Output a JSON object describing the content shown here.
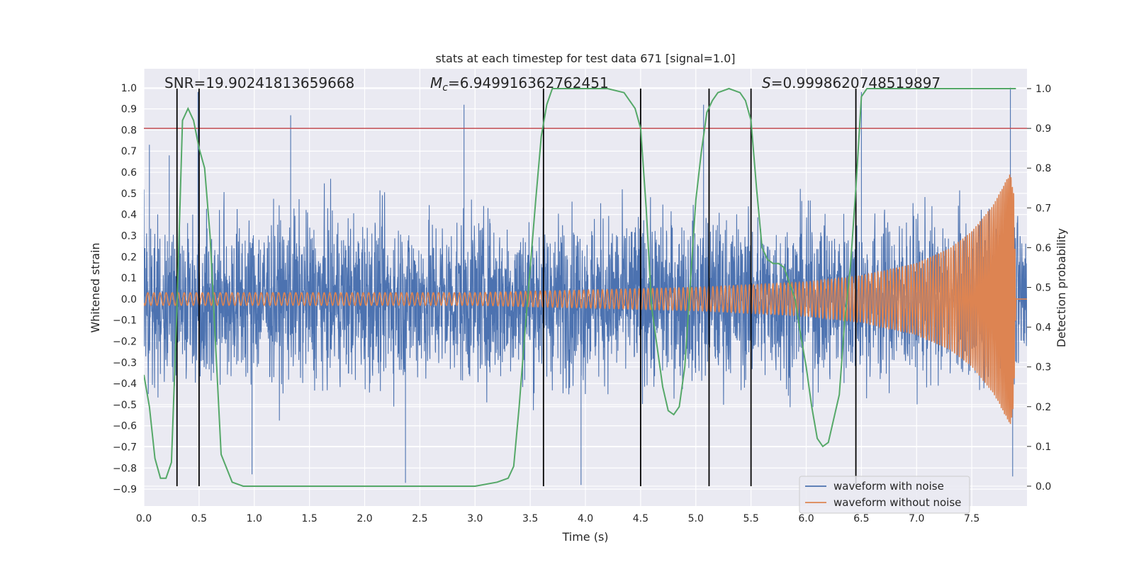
{
  "chart_data": {
    "type": "line",
    "title": "stats at each timestep for test data 671 [signal=1.0]",
    "xlabel": "Time (s)",
    "ylabel": "Whitened strain",
    "y2label": "Detection probability",
    "xlim": [
      0.0,
      8.0
    ],
    "ylim": [
      -0.98,
      1.09
    ],
    "y2lim": [
      -0.05,
      1.05
    ],
    "x_ticks": [
      "0.0",
      "0.5",
      "1.0",
      "1.5",
      "2.0",
      "2.5",
      "3.0",
      "3.5",
      "4.0",
      "4.5",
      "5.0",
      "5.5",
      "6.0",
      "6.5",
      "7.0",
      "7.5"
    ],
    "y_ticks": [
      "−0.9",
      "−0.8",
      "−0.7",
      "−0.6",
      "−0.5",
      "−0.4",
      "−0.3",
      "−0.2",
      "−0.1",
      "0.0",
      "0.1",
      "0.2",
      "0.3",
      "0.4",
      "0.5",
      "0.6",
      "0.7",
      "0.8",
      "0.9",
      "1.0"
    ],
    "y2_ticks": [
      "0.0",
      "0.1",
      "0.2",
      "0.3",
      "0.4",
      "0.5",
      "0.6",
      "0.7",
      "0.8",
      "0.9",
      "1.0"
    ],
    "grid": true,
    "legend_position": "lower-right",
    "annotations": {
      "snr": "SNR=19.90241813659668",
      "mc_symbol": "M",
      "mc_sub": "c",
      "mc_value": "=6.949916362762451",
      "s_symbol": "S",
      "s_value": "=0.9998620748519897"
    },
    "threshold_probability": 0.9,
    "vertical_markers": [
      0.3,
      0.5,
      3.62,
      4.5,
      5.12,
      5.5,
      6.45
    ],
    "series": [
      {
        "name": "waveform with noise",
        "color": "#4c72b0",
        "kind": "noise",
        "peak_samples": [
          {
            "x": 0.05,
            "y": 0.73
          },
          {
            "x": 0.23,
            "y": 0.68
          },
          {
            "x": 0.3,
            "y": 0.98
          },
          {
            "x": 0.49,
            "y": 0.98
          },
          {
            "x": 0.98,
            "y": -0.83
          },
          {
            "x": 1.33,
            "y": 0.87
          },
          {
            "x": 2.37,
            "y": -0.87
          },
          {
            "x": 2.9,
            "y": 0.92
          },
          {
            "x": 3.96,
            "y": -0.88
          },
          {
            "x": 5.07,
            "y": 0.92
          },
          {
            "x": 6.5,
            "y": 0.98
          },
          {
            "x": 7.85,
            "y": 1.0
          },
          {
            "x": 7.87,
            "y": -0.84
          }
        ]
      },
      {
        "name": "waveform without noise",
        "color": "#dd8452",
        "kind": "chirp",
        "amplitude_envelope": [
          [
            0.0,
            0.03
          ],
          [
            3.0,
            0.03
          ],
          [
            5.0,
            0.055
          ],
          [
            6.0,
            0.08
          ],
          [
            6.5,
            0.11
          ],
          [
            7.0,
            0.17
          ],
          [
            7.3,
            0.24
          ],
          [
            7.5,
            0.32
          ],
          [
            7.7,
            0.45
          ],
          [
            7.8,
            0.55
          ],
          [
            7.85,
            0.6
          ],
          [
            7.88,
            0.5
          ],
          [
            7.9,
            0.0
          ]
        ],
        "end_time": 7.9
      },
      {
        "name": "detection probability",
        "color": "#55a868",
        "axis": "right",
        "x": [
          0.0,
          0.05,
          0.1,
          0.15,
          0.2,
          0.25,
          0.3,
          0.35,
          0.4,
          0.45,
          0.5,
          0.55,
          0.6,
          0.7,
          0.8,
          0.9,
          1.0,
          2.0,
          3.0,
          3.2,
          3.3,
          3.35,
          3.4,
          3.45,
          3.5,
          3.55,
          3.6,
          3.65,
          3.7,
          3.75,
          3.8,
          4.0,
          4.2,
          4.35,
          4.45,
          4.5,
          4.55,
          4.6,
          4.7,
          4.75,
          4.8,
          4.85,
          4.9,
          5.0,
          5.05,
          5.1,
          5.15,
          5.2,
          5.3,
          5.4,
          5.45,
          5.5,
          5.55,
          5.6,
          5.65,
          5.7,
          5.75,
          5.8,
          5.9,
          5.95,
          6.0,
          6.05,
          6.1,
          6.15,
          6.2,
          6.3,
          6.35,
          6.4,
          6.45,
          6.5,
          6.55,
          7.0,
          7.9
        ],
        "y": [
          0.28,
          0.2,
          0.07,
          0.02,
          0.02,
          0.06,
          0.45,
          0.92,
          0.95,
          0.92,
          0.85,
          0.8,
          0.63,
          0.08,
          0.01,
          0.0,
          0.0,
          0.0,
          0.0,
          0.01,
          0.02,
          0.05,
          0.2,
          0.38,
          0.55,
          0.72,
          0.88,
          0.96,
          1.0,
          1.0,
          1.0,
          1.0,
          1.0,
          0.99,
          0.95,
          0.9,
          0.7,
          0.45,
          0.25,
          0.19,
          0.18,
          0.2,
          0.3,
          0.72,
          0.84,
          0.94,
          0.97,
          0.99,
          1.0,
          0.99,
          0.97,
          0.92,
          0.75,
          0.6,
          0.57,
          0.56,
          0.56,
          0.55,
          0.47,
          0.38,
          0.3,
          0.2,
          0.12,
          0.1,
          0.11,
          0.23,
          0.42,
          0.55,
          0.75,
          0.98,
          1.0,
          1.0,
          1.0
        ]
      }
    ]
  }
}
